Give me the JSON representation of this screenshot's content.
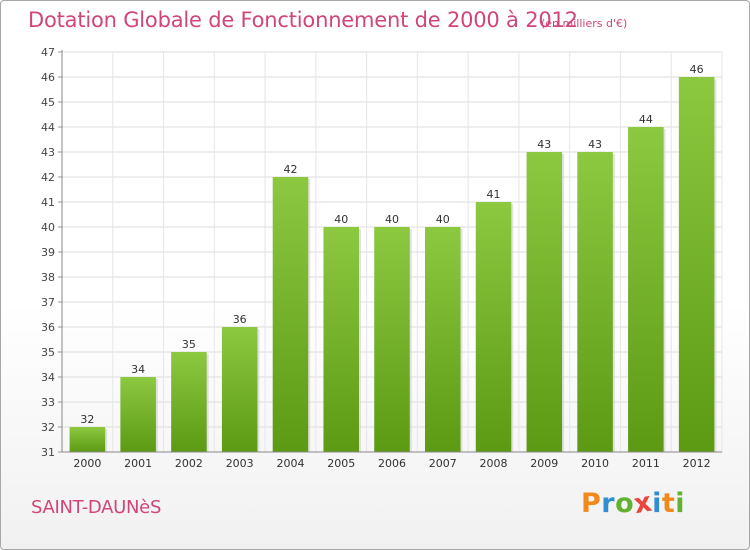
{
  "chart_data": {
    "type": "bar",
    "title": "Dotation Globale de Fonctionnement de 2000 à 2012",
    "subtitle": "(en milliers d'€)",
    "categories": [
      "2000",
      "2001",
      "2002",
      "2003",
      "2004",
      "2005",
      "2006",
      "2007",
      "2008",
      "2009",
      "2010",
      "2011",
      "2012"
    ],
    "values": [
      32,
      34,
      35,
      36,
      42,
      40,
      40,
      40,
      41,
      43,
      43,
      44,
      46
    ],
    "data_labels": [
      "32",
      "34",
      "35",
      "36",
      "42",
      "40",
      "40",
      "40",
      "41",
      "43",
      "43",
      "44",
      "46"
    ],
    "yticks": [
      31,
      32,
      33,
      34,
      35,
      36,
      37,
      38,
      39,
      40,
      41,
      42,
      43,
      44,
      45,
      46,
      47
    ],
    "ylim": [
      31,
      47
    ],
    "grid": true,
    "bar_color_top": "#8cc840",
    "bar_color_bottom": "#5d9a14"
  },
  "commune": "SAINT-DAUNèS",
  "logo": {
    "letters": [
      "P",
      "r",
      "o",
      "x",
      "i",
      "t",
      "i"
    ],
    "colors": [
      "#f08a1c",
      "#2f8fd0",
      "#62b22f",
      "#e8463c",
      "#2f8fd0",
      "#f08a1c",
      "#62b22f"
    ]
  }
}
